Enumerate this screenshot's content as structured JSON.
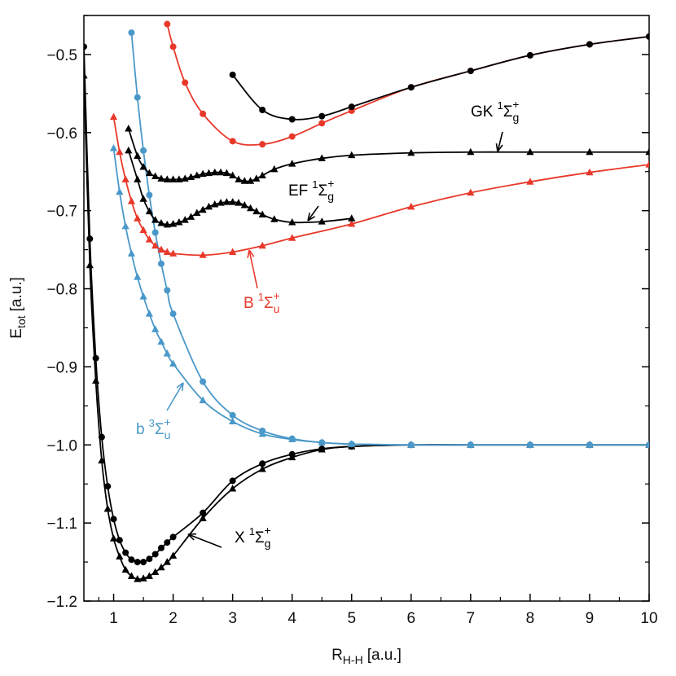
{
  "chart_data": {
    "type": "line",
    "x_label": {
      "main": "R",
      "sub": "H-H",
      "unit": "[a.u.]"
    },
    "y_label": {
      "main": "E",
      "sub": "tot",
      "unit": "[a.u.]"
    },
    "xlim": [
      0.5,
      10
    ],
    "ylim": [
      -1.2,
      -0.45
    ],
    "xticks": [
      1,
      2,
      3,
      4,
      5,
      6,
      7,
      8,
      9,
      10
    ],
    "yticks": [
      {
        "value": -1.2,
        "label": "−1.2"
      },
      {
        "value": -1.1,
        "label": "−1.1"
      },
      {
        "value": -1.0,
        "label": "−1.0"
      },
      {
        "value": -0.9,
        "label": "−0.9"
      },
      {
        "value": -0.8,
        "label": "−0.8"
      },
      {
        "value": -0.7,
        "label": "−0.7"
      },
      {
        "value": -0.6,
        "label": "−0.6"
      },
      {
        "value": -0.5,
        "label": "−0.5"
      }
    ],
    "grid": false,
    "series": [
      {
        "color": "#000000",
        "marker": "circle",
        "x": [
          0.5,
          0.6,
          0.7,
          0.8,
          0.9,
          1.0,
          1.1,
          1.2,
          1.3,
          1.4,
          1.5,
          1.6,
          1.7,
          1.8,
          1.9,
          2.0,
          2.5,
          3.0,
          3.5,
          4.0,
          4.5,
          5,
          6,
          7,
          8,
          9,
          10
        ],
        "values": [
          -0.49,
          -0.736,
          -0.889,
          -0.99,
          -1.053,
          -1.095,
          -1.122,
          -1.138,
          -1.147,
          -1.15,
          -1.15,
          -1.146,
          -1.14,
          -1.132,
          -1.125,
          -1.118,
          -1.087,
          -1.046,
          -1.024,
          -1.012,
          -1.005,
          -1.002,
          -1.0,
          -1.0,
          -1.0,
          -1.0,
          -1.0
        ]
      },
      {
        "color": "#000000",
        "marker": "triangle",
        "x": [
          0.5,
          0.6,
          0.7,
          0.8,
          0.9,
          1.0,
          1.1,
          1.2,
          1.3,
          1.4,
          1.5,
          1.6,
          1.7,
          1.8,
          1.9,
          2.0,
          2.5,
          3.0,
          3.5,
          4.0,
          4.5,
          5,
          6,
          7,
          8,
          9,
          10
        ],
        "values": [
          -0.527,
          -0.77,
          -0.918,
          -1.02,
          -1.082,
          -1.12,
          -1.143,
          -1.16,
          -1.168,
          -1.172,
          -1.171,
          -1.168,
          -1.163,
          -1.157,
          -1.15,
          -1.142,
          -1.094,
          -1.056,
          -1.031,
          -1.016,
          -1.006,
          -1.002,
          -1.0,
          -1.0,
          -1.0,
          -1.0,
          -1.0
        ]
      },
      {
        "color": "#4a98c9",
        "marker": "circle",
        "x": [
          1.3,
          1.4,
          1.5,
          1.6,
          1.7,
          1.8,
          1.9,
          2.0,
          2.5,
          3.0,
          3.5,
          4.0,
          4.5,
          5,
          6,
          7,
          8,
          9,
          10
        ],
        "values": [
          -0.472,
          -0.555,
          -0.623,
          -0.68,
          -0.728,
          -0.768,
          -0.802,
          -0.832,
          -0.919,
          -0.962,
          -0.982,
          -0.992,
          -0.997,
          -0.999,
          -1.0,
          -1.0,
          -1.0,
          -1.0,
          -1.0
        ]
      },
      {
        "color": "#4a98c9",
        "marker": "triangle",
        "x": [
          1.0,
          1.1,
          1.2,
          1.3,
          1.4,
          1.5,
          1.6,
          1.7,
          1.8,
          1.9,
          2.0,
          2.5,
          3.0,
          3.5,
          4.0,
          4.5,
          5,
          6,
          7,
          8,
          9,
          10
        ],
        "values": [
          -0.62,
          -0.676,
          -0.72,
          -0.755,
          -0.785,
          -0.81,
          -0.832,
          -0.852,
          -0.868,
          -0.883,
          -0.896,
          -0.943,
          -0.97,
          -0.986,
          -0.993,
          -0.997,
          -0.999,
          -1.0,
          -1.0,
          -1.0,
          -1.0,
          -1.0
        ]
      },
      {
        "color": "#e8382a",
        "marker": "triangle",
        "x": [
          1.0,
          1.1,
          1.2,
          1.3,
          1.4,
          1.5,
          1.6,
          1.7,
          1.8,
          1.9,
          2.0,
          2.5,
          3.0,
          3.5,
          4.0,
          5,
          6,
          7,
          8,
          9,
          10
        ],
        "values": [
          -0.58,
          -0.625,
          -0.66,
          -0.688,
          -0.71,
          -0.725,
          -0.737,
          -0.745,
          -0.75,
          -0.753,
          -0.755,
          -0.757,
          -0.753,
          -0.745,
          -0.735,
          -0.717,
          -0.695,
          -0.677,
          -0.663,
          -0.651,
          -0.641
        ]
      },
      {
        "color": "#e8382a",
        "marker": "circle",
        "x": [
          1.9,
          2.0,
          2.2,
          2.5,
          3.0,
          3.5,
          4.0,
          4.5,
          5,
          6,
          7,
          8,
          9,
          10
        ],
        "values": [
          -0.461,
          -0.49,
          -0.536,
          -0.576,
          -0.611,
          -0.615,
          -0.605,
          -0.588,
          -0.572,
          -0.542,
          -0.521,
          -0.501,
          -0.487,
          -0.477
        ]
      },
      {
        "color": "#000000",
        "marker": "circle",
        "x": [
          3.0,
          3.5,
          4.0,
          4.5,
          5,
          6,
          7,
          8,
          9,
          10
        ],
        "values": [
          -0.526,
          -0.571,
          -0.583,
          -0.579,
          -0.567,
          -0.542,
          -0.521,
          -0.501,
          -0.487,
          -0.477
        ]
      },
      {
        "color": "#000000",
        "marker": "triangle",
        "x": [
          1.25,
          1.4,
          1.5,
          1.6,
          1.7,
          1.8,
          1.9,
          2.0,
          2.1,
          2.2,
          2.3,
          2.4,
          2.5,
          2.6,
          2.7,
          2.8,
          2.9,
          3.0,
          3.1,
          3.2,
          3.3,
          3.4,
          3.5,
          3.7,
          4.0,
          4.5,
          5,
          6,
          7,
          8,
          9,
          10
        ],
        "values": [
          -0.595,
          -0.63,
          -0.644,
          -0.652,
          -0.656,
          -0.659,
          -0.66,
          -0.66,
          -0.66,
          -0.659,
          -0.657,
          -0.655,
          -0.653,
          -0.652,
          -0.651,
          -0.651,
          -0.652,
          -0.655,
          -0.66,
          -0.662,
          -0.662,
          -0.659,
          -0.655,
          -0.647,
          -0.64,
          -0.633,
          -0.629,
          -0.626,
          -0.625,
          -0.625,
          -0.625,
          -0.625
        ]
      },
      {
        "color": "#000000",
        "marker": "triangle",
        "x": [
          1.25,
          1.4,
          1.5,
          1.6,
          1.7,
          1.8,
          1.9,
          2.0,
          2.1,
          2.2,
          2.3,
          2.4,
          2.5,
          2.6,
          2.7,
          2.8,
          2.9,
          3.0,
          3.1,
          3.2,
          3.3,
          3.4,
          3.5,
          3.7,
          4.0,
          4.5,
          5
        ],
        "values": [
          -0.623,
          -0.66,
          -0.685,
          -0.701,
          -0.712,
          -0.716,
          -0.718,
          -0.717,
          -0.715,
          -0.712,
          -0.708,
          -0.703,
          -0.699,
          -0.695,
          -0.692,
          -0.69,
          -0.689,
          -0.689,
          -0.69,
          -0.693,
          -0.697,
          -0.701,
          -0.705,
          -0.711,
          -0.715,
          -0.714,
          -0.71
        ]
      }
    ],
    "annotations": [
      {
        "text": "GK",
        "multiplicity": "1",
        "term": "Σ",
        "parity": "g",
        "sign": "+",
        "color": "#000000"
      },
      {
        "text": "EF",
        "multiplicity": "1",
        "term": "Σ",
        "parity": "g",
        "sign": "+",
        "color": "#000000"
      },
      {
        "text": "B",
        "multiplicity": "1",
        "term": "Σ",
        "parity": "u",
        "sign": "+",
        "color": "#e8382a"
      },
      {
        "text": "b",
        "multiplicity": "3",
        "term": "Σ",
        "parity": "u",
        "sign": "+",
        "color": "#4a98c9"
      },
      {
        "text": "X",
        "multiplicity": "1",
        "term": "Σ",
        "parity": "g",
        "sign": "+",
        "color": "#000000"
      }
    ]
  }
}
